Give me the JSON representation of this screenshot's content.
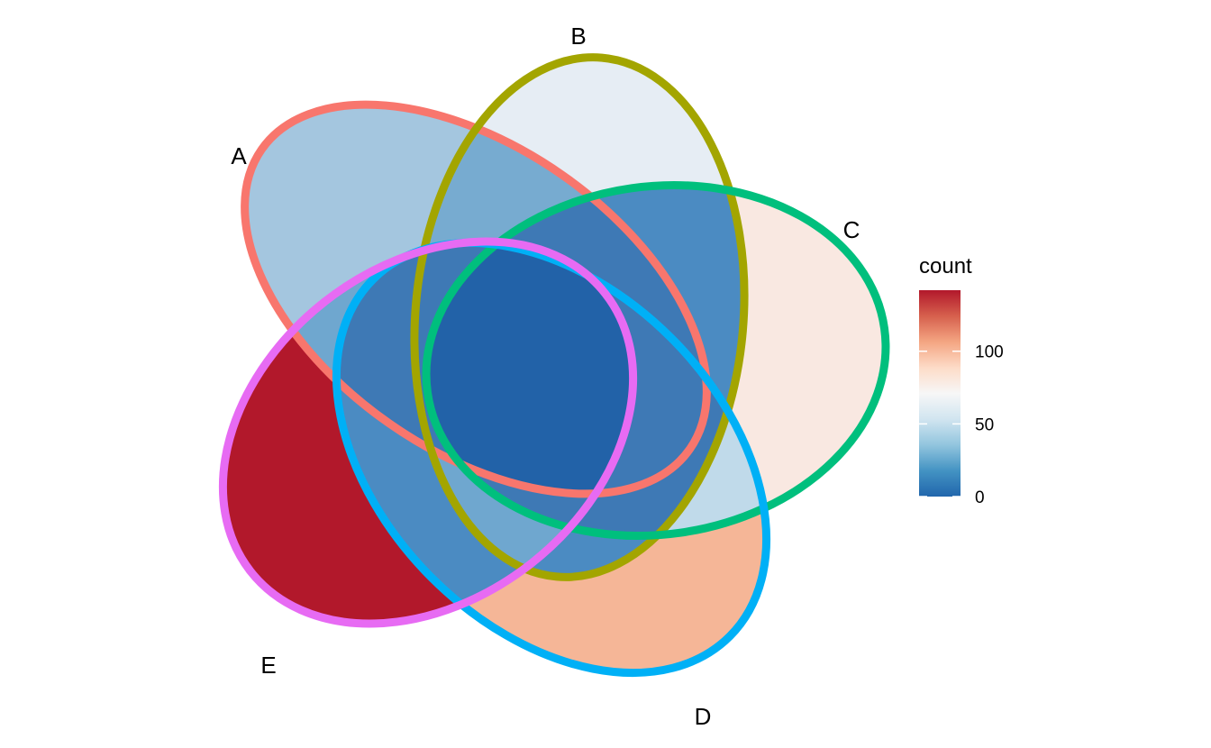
{
  "chart_data": {
    "type": "venn",
    "sets": [
      {
        "name": "A",
        "color": "#F8766D",
        "fill": "#A4C6DF"
      },
      {
        "name": "B",
        "color": "#A3A500",
        "fill": "#E6EDF4"
      },
      {
        "name": "C",
        "color": "#00BF7D",
        "fill": "#F9E8E1"
      },
      {
        "name": "D",
        "color": "#00B0F6",
        "fill": "#F5B697"
      },
      {
        "name": "E",
        "color": "#E76BF3",
        "fill": "#B2182B"
      }
    ],
    "pairwise_fill": [
      "#77ABD0",
      "#4B8BC2",
      "#C0DAEA",
      "#4B8BC2",
      "#6FA7CF"
    ],
    "inner_fill": "#3E79B5",
    "center_fill": "#2262A8",
    "legend": {
      "title": "count",
      "ticks": [
        "0",
        "50",
        "100"
      ],
      "tick_values": [
        0,
        50,
        100
      ],
      "range": [
        0,
        142
      ],
      "colors": [
        "#2166AC",
        "#4393C3",
        "#92C5DE",
        "#D1E5F0",
        "#F7F7F7",
        "#FDDBC7",
        "#F4A582",
        "#D6604D",
        "#B2182B"
      ]
    }
  }
}
